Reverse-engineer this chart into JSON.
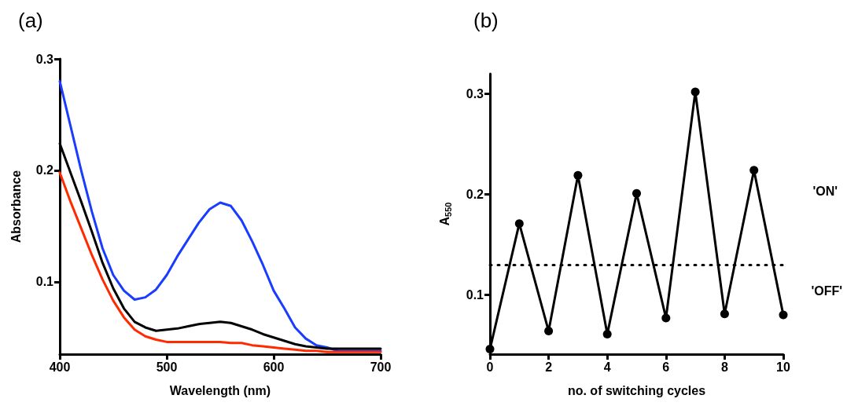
{
  "chart_data": [
    {
      "type": "line",
      "title": "(a)",
      "xlabel": "Wavelength (nm)",
      "ylabel": "Absorbance",
      "xlim": [
        400,
        700
      ],
      "xticks": [
        400,
        500,
        600,
        700
      ],
      "ylim": [
        0.035,
        0.3
      ],
      "yticks": [
        0.1,
        0.2,
        0.3
      ],
      "marker": "none",
      "line_style": "solid",
      "x": [
        400,
        410,
        420,
        430,
        440,
        450,
        460,
        470,
        480,
        490,
        500,
        510,
        520,
        530,
        540,
        550,
        560,
        570,
        580,
        590,
        600,
        610,
        620,
        630,
        640,
        650,
        660,
        670,
        680,
        690,
        700
      ],
      "series": [
        {
          "color": "#1a3cff",
          "values": [
            0.28,
            0.24,
            0.2,
            0.163,
            0.13,
            0.106,
            0.092,
            0.084,
            0.086,
            0.093,
            0.106,
            0.123,
            0.138,
            0.153,
            0.165,
            0.171,
            0.168,
            0.155,
            0.136,
            0.115,
            0.092,
            0.076,
            0.059,
            0.049,
            0.043,
            0.041,
            0.038,
            0.038,
            0.038,
            0.038,
            0.038
          ]
        },
        {
          "color": "#000000",
          "values": [
            0.224,
            0.198,
            0.172,
            0.145,
            0.117,
            0.094,
            0.076,
            0.064,
            0.059,
            0.056,
            0.057,
            0.058,
            0.06,
            0.062,
            0.063,
            0.064,
            0.063,
            0.06,
            0.057,
            0.053,
            0.05,
            0.047,
            0.044,
            0.042,
            0.041,
            0.04,
            0.04,
            0.04,
            0.04,
            0.04,
            0.04
          ]
        },
        {
          "color": "#ff2a00",
          "values": [
            0.198,
            0.172,
            0.148,
            0.124,
            0.102,
            0.083,
            0.068,
            0.057,
            0.051,
            0.048,
            0.046,
            0.046,
            0.046,
            0.046,
            0.046,
            0.046,
            0.045,
            0.045,
            0.043,
            0.042,
            0.041,
            0.04,
            0.039,
            0.038,
            0.038,
            0.037,
            0.037,
            0.037,
            0.037,
            0.037,
            0.037
          ]
        }
      ]
    },
    {
      "type": "line",
      "title": "(b)",
      "xlabel": "no. of switching cycles",
      "ylabel": "A$_{550}$",
      "xlim": [
        0,
        10
      ],
      "xticks": [
        0,
        2,
        4,
        6,
        8,
        10
      ],
      "ylim": [
        0.041,
        0.32
      ],
      "yticks": [
        0.1,
        0.2,
        0.3
      ],
      "marker": "circle",
      "line_style": "solid",
      "x": [
        0,
        1,
        2,
        3,
        4,
        5,
        6,
        7,
        8,
        9,
        10
      ],
      "series": [
        {
          "color": "#000000",
          "values": [
            0.046,
            0.171,
            0.064,
            0.219,
            0.061,
            0.201,
            0.077,
            0.302,
            0.081,
            0.224,
            0.08
          ]
        }
      ],
      "ref_lines": [
        {
          "axis": "y",
          "value": 0.13,
          "color": "#000000",
          "line_style": "dotted"
        }
      ],
      "annotations": [
        "'ON'",
        "'OFF'"
      ]
    }
  ]
}
